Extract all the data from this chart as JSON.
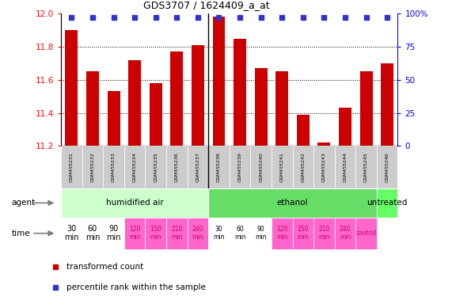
{
  "title": "GDS3707 / 1624409_a_at",
  "samples": [
    "GSM455231",
    "GSM455232",
    "GSM455233",
    "GSM455234",
    "GSM455235",
    "GSM455236",
    "GSM455237",
    "GSM455238",
    "GSM455239",
    "GSM455240",
    "GSM455241",
    "GSM455242",
    "GSM455243",
    "GSM455244",
    "GSM455245",
    "GSM455246"
  ],
  "bar_values": [
    11.9,
    11.65,
    11.53,
    11.72,
    11.58,
    11.77,
    11.81,
    11.98,
    11.85,
    11.67,
    11.65,
    11.39,
    11.22,
    11.43,
    11.65,
    11.7
  ],
  "percentile_values": [
    97,
    97,
    97,
    97,
    97,
    97,
    97,
    97,
    97,
    97,
    97,
    97,
    97,
    97,
    97,
    97
  ],
  "ylim_left": [
    11.2,
    12.0
  ],
  "ylim_right": [
    0,
    100
  ],
  "yticks_left": [
    11.2,
    11.4,
    11.6,
    11.8,
    12.0
  ],
  "yticks_right": [
    0,
    25,
    50,
    75,
    100
  ],
  "bar_color": "#cc0000",
  "dot_color": "#3333cc",
  "agent_groups": [
    {
      "label": "humidified air",
      "start": 0,
      "end": 7,
      "color": "#ccffcc"
    },
    {
      "label": "ethanol",
      "start": 7,
      "end": 15,
      "color": "#66dd66"
    },
    {
      "label": "untreated",
      "start": 15,
      "end": 16,
      "color": "#66ff66"
    }
  ],
  "time_white_indices": [
    0,
    1,
    2,
    7,
    8,
    9
  ],
  "time_pink_color": "#ff66cc",
  "time_white_color": "#ffffff",
  "time_control_color": "#ffccee",
  "sample_label_bg": "#cccccc",
  "dotted_yticks": [
    11.4,
    11.6,
    11.8
  ],
  "separator_index": 7,
  "legend_items": [
    {
      "color": "#cc0000",
      "label": "transformed count"
    },
    {
      "color": "#3333cc",
      "label": "percentile rank within the sample"
    }
  ]
}
